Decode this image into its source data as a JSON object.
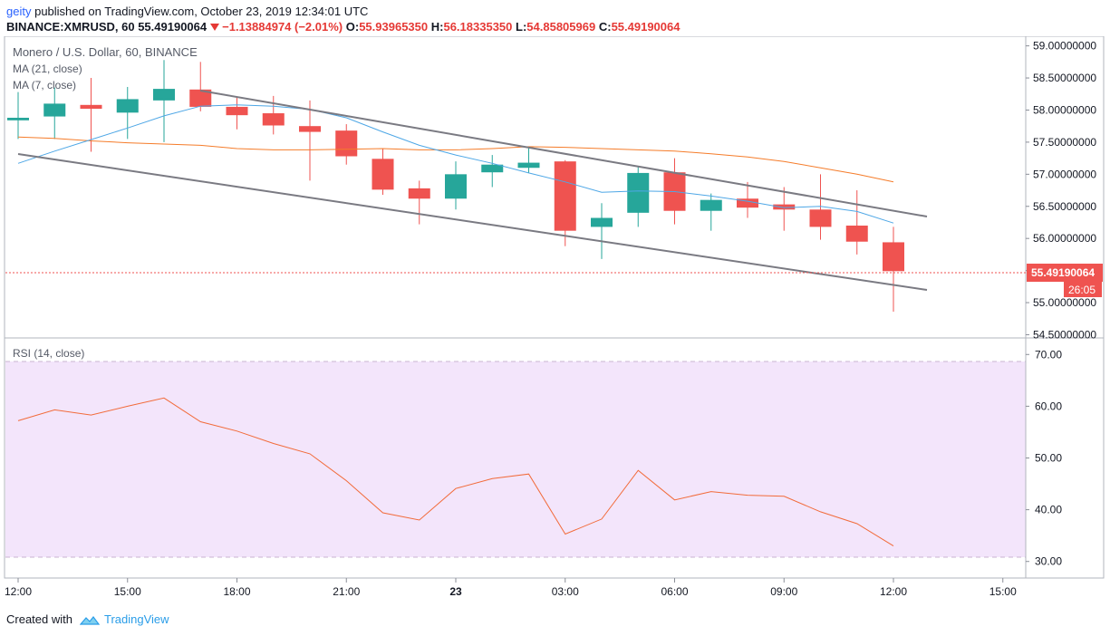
{
  "header": {
    "user": "geity",
    "published": "published on TradingView.com, October 23, 2019 12:34:01 UTC",
    "symbol_line": "BINANCE:XMRUSD, 60",
    "last": "55.49190064",
    "change": "−1.13884974 (−2.01%)",
    "open_label": "O:",
    "open": "55.93965350",
    "high_label": "H:",
    "high": "56.18335350",
    "low_label": "L:",
    "low": "54.85805969",
    "close_label": "C:",
    "close": "55.49190064"
  },
  "legend": {
    "title": "Monero / U.S. Dollar, 60, BINANCE",
    "ma21": "MA (21, close)",
    "ma7": "MA (7, close)",
    "rsi": "RSI (14, close)"
  },
  "price_badge": "55.49190064",
  "countdown_badge": "26:05",
  "footer": {
    "created_with": "Created with",
    "brand": "TradingView"
  },
  "colors": {
    "up": "#26a69a",
    "down": "#ef5350",
    "ma21": "#f57c2a",
    "ma7": "#4ea7e6",
    "channel": "#7a7a82",
    "rsi_line": "#f26b3a",
    "rsi_band": "#f3e5fb"
  },
  "chart_data": [
    {
      "type": "candlestick",
      "title": "Monero / U.S. Dollar, 60, BINANCE",
      "x_ticks": [
        "12:00",
        "15:00",
        "18:00",
        "21:00",
        "23",
        "03:00",
        "06:00",
        "09:00",
        "12:00",
        "15:00"
      ],
      "y_ticks": [
        "54.50000000",
        "55.00000000",
        "55.50000000",
        "56.00000000",
        "56.50000000",
        "57.00000000",
        "57.50000000",
        "58.00000000",
        "58.50000000",
        "59.00000000"
      ],
      "ylim": [
        54.45,
        59.15
      ],
      "candles": [
        {
          "o": 57.84,
          "h": 58.28,
          "l": 57.55,
          "c": 57.88
        },
        {
          "o": 57.9,
          "h": 58.35,
          "l": 57.55,
          "c": 58.1
        },
        {
          "o": 58.08,
          "h": 58.5,
          "l": 57.35,
          "c": 58.02
        },
        {
          "o": 57.96,
          "h": 58.36,
          "l": 57.55,
          "c": 58.17
        },
        {
          "o": 58.15,
          "h": 58.78,
          "l": 57.5,
          "c": 58.33
        },
        {
          "o": 58.32,
          "h": 58.75,
          "l": 57.98,
          "c": 58.05
        },
        {
          "o": 58.05,
          "h": 58.2,
          "l": 57.7,
          "c": 57.92
        },
        {
          "o": 57.95,
          "h": 58.22,
          "l": 57.62,
          "c": 57.76
        },
        {
          "o": 57.75,
          "h": 58.15,
          "l": 56.9,
          "c": 57.66
        },
        {
          "o": 57.68,
          "h": 57.78,
          "l": 57.15,
          "c": 57.28
        },
        {
          "o": 57.24,
          "h": 57.4,
          "l": 56.68,
          "c": 56.76
        },
        {
          "o": 56.78,
          "h": 56.9,
          "l": 56.22,
          "c": 56.62
        },
        {
          "o": 56.62,
          "h": 57.2,
          "l": 56.45,
          "c": 57.0
        },
        {
          "o": 57.03,
          "h": 57.3,
          "l": 56.8,
          "c": 57.15
        },
        {
          "o": 57.1,
          "h": 57.42,
          "l": 57.02,
          "c": 57.18
        },
        {
          "o": 57.2,
          "h": 57.22,
          "l": 55.88,
          "c": 56.12
        },
        {
          "o": 56.18,
          "h": 56.55,
          "l": 55.68,
          "c": 56.32
        },
        {
          "o": 56.4,
          "h": 57.12,
          "l": 56.18,
          "c": 57.02
        },
        {
          "o": 57.03,
          "h": 57.25,
          "l": 56.22,
          "c": 56.43
        },
        {
          "o": 56.43,
          "h": 56.7,
          "l": 56.12,
          "c": 56.6
        },
        {
          "o": 56.62,
          "h": 56.88,
          "l": 56.32,
          "c": 56.48
        },
        {
          "o": 56.53,
          "h": 56.8,
          "l": 56.12,
          "c": 56.45
        },
        {
          "o": 56.45,
          "h": 57.0,
          "l": 55.98,
          "c": 56.18
        },
        {
          "o": 56.2,
          "h": 56.75,
          "l": 55.75,
          "c": 55.95
        },
        {
          "o": 55.94,
          "h": 56.18,
          "l": 54.86,
          "c": 55.49
        }
      ],
      "series": [
        {
          "name": "MA (21, close)",
          "values": [
            57.58,
            57.56,
            57.52,
            57.49,
            57.47,
            57.45,
            57.4,
            57.38,
            57.38,
            57.39,
            57.4,
            57.38,
            57.38,
            57.4,
            57.43,
            57.42,
            57.4,
            57.38,
            57.36,
            57.32,
            57.27,
            57.2,
            57.1,
            57.0,
            56.88
          ]
        },
        {
          "name": "MA (7, close)",
          "values": [
            57.17,
            57.36,
            57.54,
            57.72,
            57.91,
            58.06,
            58.08,
            58.06,
            58.01,
            57.88,
            57.66,
            57.45,
            57.3,
            57.17,
            57.02,
            56.88,
            56.72,
            56.74,
            56.73,
            56.66,
            56.58,
            56.48,
            56.5,
            56.42,
            56.24
          ]
        }
      ]
    },
    {
      "type": "line",
      "title": "RSI (14, close)",
      "y_ticks": [
        "30.00",
        "40.00",
        "50.00",
        "60.00",
        "70.00"
      ],
      "ylim": [
        26.8,
        73.2
      ],
      "band": [
        30,
        70
      ],
      "series": [
        {
          "name": "RSI (14, close)",
          "values": [
            57.2,
            59.3,
            58.3,
            60.0,
            61.6,
            57.0,
            55.2,
            52.8,
            50.8,
            45.6,
            39.4,
            38.0,
            44.1,
            46.0,
            46.9,
            35.3,
            38.2,
            47.6,
            41.9,
            43.5,
            42.8,
            42.6,
            39.6,
            37.3,
            33.0
          ]
        }
      ]
    }
  ]
}
